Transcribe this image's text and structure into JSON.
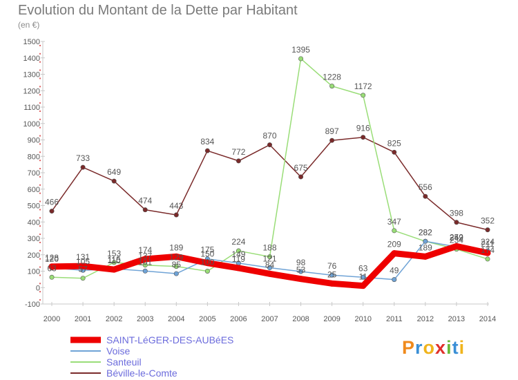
{
  "header": {
    "title": "Evolution du Montant de la Dette par Habitant",
    "unit": "(en €)"
  },
  "logo": {
    "text": "Proxiti",
    "letters": [
      "P",
      "r",
      "o",
      "x",
      "i",
      "t",
      "i"
    ],
    "colors": [
      "#f08a1c",
      "#3a8fd6",
      "#f0b41c",
      "#e0302a",
      "#6aba3a",
      "#3a8fd6",
      "#f0b41c"
    ]
  },
  "chart_data": {
    "type": "line",
    "title": "Evolution du Montant de la Dette par Habitant",
    "ylabel": "(en €)",
    "xlabel": "",
    "x": [
      "2000",
      "2001",
      "2002",
      "2003",
      "2004",
      "2005",
      "2006",
      "2007",
      "2008",
      "2009",
      "2010",
      "2011",
      "2012",
      "2013",
      "2014"
    ],
    "ylim": [
      -100,
      1500
    ],
    "yticks": [
      -100,
      0,
      100,
      200,
      300,
      400,
      500,
      600,
      700,
      800,
      900,
      1000,
      1100,
      1200,
      1300,
      1400,
      1500
    ],
    "grid": false,
    "legend_position": "bottom-left",
    "series": [
      {
        "name": "SAINT-LéGER-DES-AUBéES",
        "color": "#ee0000",
        "values": [
          128,
          131,
          110,
          174,
          189,
          150,
          119,
          84,
          53,
          25,
          11,
          209,
          189,
          252,
          211
        ],
        "labels": [
          "128",
          "131",
          "110",
          "174",
          "189",
          "150",
          "119",
          "84",
          "53",
          "25",
          "11",
          "209",
          "189",
          "252",
          "211"
        ]
      },
      {
        "name": "Voise",
        "color": "#6fa3d6",
        "values": [
          120,
          105,
          115,
          101,
          85,
          175,
          149,
          121,
          98,
          76,
          63,
          49,
          282,
          249,
          224
        ],
        "labels": [
          "120",
          "105",
          "115",
          "101",
          "85",
          "175",
          "149",
          "121",
          "98",
          "76",
          "63",
          "49",
          "282",
          "249",
          "224"
        ]
      },
      {
        "name": "Santeuil",
        "color": "#99dd77",
        "values": [
          63,
          57,
          153,
          137,
          129,
          100,
          224,
          188,
          1395,
          1228,
          1172,
          347,
          282,
          234,
          174
        ],
        "labels": [
          "63",
          "57",
          "153",
          "137",
          "129",
          "100",
          "224",
          "188",
          "1395",
          "1228",
          "1172",
          "347",
          "282",
          "234",
          "174"
        ]
      },
      {
        "name": "Béville-le-Comte",
        "color": "#7a2a2a",
        "values": [
          466,
          733,
          649,
          474,
          443,
          834,
          772,
          870,
          675,
          897,
          916,
          825,
          556,
          398,
          352
        ],
        "labels": [
          "466",
          "733",
          "649",
          "474",
          "443",
          "834",
          "772",
          "870",
          "675",
          "897",
          "916",
          "825",
          "556",
          "398",
          "352"
        ]
      }
    ]
  }
}
